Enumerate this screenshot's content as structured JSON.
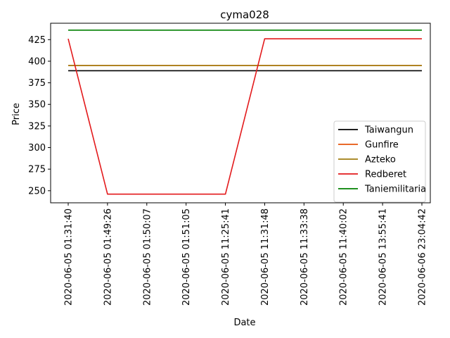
{
  "chart_data": {
    "type": "line",
    "title": "cyma028",
    "xlabel": "Date",
    "ylabel": "Price",
    "categories": [
      "2020-06-05 01:31:40",
      "2020-06-05 01:49:26",
      "2020-06-05 01:50:07",
      "2020-06-05 01:51:05",
      "2020-06-05 11:25:41",
      "2020-06-05 11:31:48",
      "2020-06-05 11:33:38",
      "2020-06-05 11:40:02",
      "2020-06-05 13:55:41",
      "2020-06-06 23:04:42"
    ],
    "yticks": [
      250,
      275,
      300,
      325,
      350,
      375,
      400,
      425
    ],
    "ylim": [
      236,
      444
    ],
    "grid": false,
    "legend_position": "lower right",
    "series": [
      {
        "name": "Taiwangun",
        "color": "#000000",
        "values": [
          389,
          389,
          389,
          389,
          389,
          389,
          389,
          389,
          389,
          389
        ]
      },
      {
        "name": "Gunfire",
        "color": "#e6550d",
        "values": [
          395,
          395,
          395,
          395,
          395,
          395,
          395,
          395,
          395,
          395
        ]
      },
      {
        "name": "Azteko",
        "color": "#a07d10",
        "values": [
          395,
          395,
          395,
          395,
          395,
          395,
          395,
          395,
          395,
          395
        ]
      },
      {
        "name": "Redberet",
        "color": "#e31a1c",
        "values": [
          426,
          246,
          246,
          246,
          246,
          426,
          426,
          426,
          426,
          426
        ]
      },
      {
        "name": "Taniemilitaria",
        "color": "#008000",
        "values": [
          436,
          436,
          436,
          436,
          436,
          436,
          436,
          436,
          436,
          436
        ]
      }
    ]
  }
}
